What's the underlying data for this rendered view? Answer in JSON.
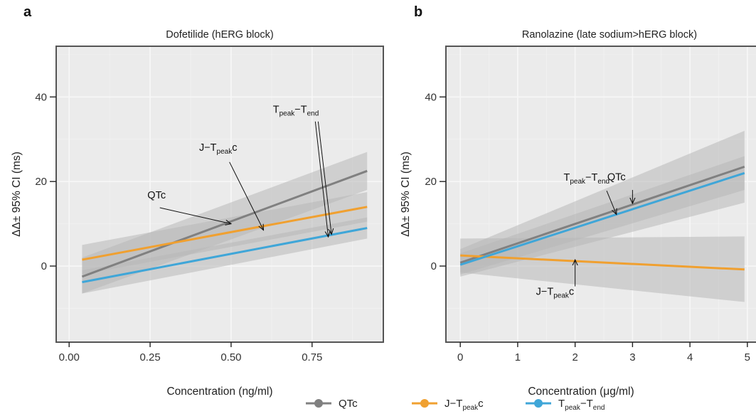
{
  "colors": {
    "QTc": "#808080",
    "J-Tpeakc": "#f0a030",
    "Tpeak-Tend": "#3fa6d8",
    "band": "#b8b8b8"
  },
  "legend": {
    "entries": [
      {
        "series": "QTc",
        "main": "QTc",
        "sub": "",
        "tail": ""
      },
      {
        "series": "J-Tpeakc",
        "main": "J−T",
        "sub": "peak",
        "tail": "c"
      },
      {
        "series": "Tpeak-Tend",
        "main": "T",
        "sub": "peak",
        "tail": "−T",
        "sub2": "end"
      }
    ]
  },
  "chart_data": [
    {
      "panel_label": "a",
      "title": "Dofetilide (hERG block)",
      "type": "line",
      "xlabel": "Concentration (ng/ml)",
      "ylabel": "ΔΔ± 95% CI (ms)",
      "xlim": [
        -0.04,
        0.97
      ],
      "ylim": [
        -18,
        52
      ],
      "xticks": [
        0.0,
        0.25,
        0.5,
        0.75
      ],
      "xtick_labels": [
        "0.00",
        "0.25",
        "0.50",
        "0.75"
      ],
      "yticks": [
        0,
        20,
        40
      ],
      "ytick_labels": [
        "0",
        "20",
        "40"
      ],
      "series": [
        {
          "name": "QTc",
          "x": [
            0.04,
            0.92
          ],
          "y": [
            -2.5,
            22.5
          ],
          "ci_lower": [
            -6.5,
            18.0
          ],
          "ci_upper": [
            2.0,
            27.0
          ]
        },
        {
          "name": "J-Tpeakc",
          "x": [
            0.04,
            0.92
          ],
          "y": [
            1.5,
            14.0
          ],
          "ci_lower": [
            -2.0,
            10.5
          ],
          "ci_upper": [
            5.0,
            17.5
          ]
        },
        {
          "name": "Tpeak-Tend",
          "x": [
            0.04,
            0.92
          ],
          "y": [
            -3.8,
            9.0
          ],
          "ci_lower": [
            -6.5,
            6.5
          ],
          "ci_upper": [
            -1.0,
            11.5
          ]
        }
      ],
      "annotations": [
        {
          "main": "QTc",
          "sub": "",
          "tail": "",
          "sub2": "",
          "text_at": [
            0.27,
            16.0
          ],
          "point_to": [
            0.5,
            10.0
          ],
          "tail_from": [
            0.28,
            13.8
          ]
        },
        {
          "main": "J−T",
          "sub": "peak",
          "tail": "c",
          "sub2": "",
          "text_at": [
            0.46,
            27.3
          ],
          "point_to": [
            0.6,
            8.5
          ],
          "tail_from": [
            0.495,
            24.6
          ]
        },
        {
          "main": "T",
          "sub": "peak",
          "tail": "−T",
          "sub2": "end",
          "text_at": [
            0.7,
            36.3
          ],
          "point_to": [
            0.8,
            6.9
          ],
          "tail_from": [
            0.76,
            34.2
          ],
          "point_to2": [
            0.81,
            7.5
          ]
        }
      ]
    },
    {
      "panel_label": "b",
      "title": "Ranolazine (late sodium>hERG block)",
      "type": "line",
      "xlabel": "Concentration (μg/ml)",
      "ylabel": "ΔΔ± 95% CI (ms)",
      "xlim": [
        -0.25,
        5.2
      ],
      "ylim": [
        -18,
        52
      ],
      "xticks": [
        0,
        1,
        2,
        3,
        4,
        5
      ],
      "xtick_labels": [
        "0",
        "1",
        "2",
        "3",
        "4",
        "5"
      ],
      "yticks": [
        0,
        20,
        40
      ],
      "ytick_labels": [
        "0",
        "20",
        "40"
      ],
      "series": [
        {
          "name": "QTc",
          "x": [
            0.0,
            4.95
          ],
          "y": [
            0.8,
            23.5
          ],
          "ci_lower": [
            -2.5,
            15.0
          ],
          "ci_upper": [
            4.0,
            32.0
          ]
        },
        {
          "name": "J-Tpeakc",
          "x": [
            0.0,
            4.95
          ],
          "y": [
            2.5,
            -0.8
          ],
          "ci_lower": [
            -1.5,
            -8.5
          ],
          "ci_upper": [
            6.5,
            7.0
          ]
        },
        {
          "name": "Tpeak-Tend",
          "x": [
            0.0,
            4.95
          ],
          "y": [
            0.3,
            22.0
          ],
          "ci_lower": [
            -2.0,
            18.0
          ],
          "ci_upper": [
            3.0,
            26.0
          ]
        }
      ],
      "annotations": [
        {
          "main": "T",
          "sub": "peak",
          "tail": "−T",
          "sub2": "end",
          "text_at": [
            2.2,
            20.2
          ],
          "point_to": [
            2.72,
            12.2
          ],
          "tail_from": [
            2.55,
            17.8
          ]
        },
        {
          "main": "QTc",
          "sub": "",
          "tail": "",
          "sub2": "",
          "text_at": [
            2.72,
            20.3
          ],
          "point_to": [
            3.0,
            14.8
          ],
          "tail_from": [
            3.0,
            18.0
          ]
        },
        {
          "main": "J−T",
          "sub": "peak",
          "tail": "c",
          "sub2": "",
          "text_at": [
            1.65,
            -6.8
          ],
          "point_to": [
            2.0,
            1.5
          ],
          "tail_from": [
            2.0,
            -4.8
          ]
        }
      ]
    }
  ]
}
